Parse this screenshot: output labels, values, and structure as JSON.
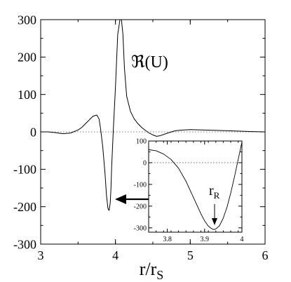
{
  "chart_data": [
    {
      "type": "line",
      "title": "",
      "xlabel": "r/r",
      "xlabel_sub": "S",
      "ylabel": "",
      "xlim": [
        3,
        6
      ],
      "ylim": [
        -300,
        300
      ],
      "x_ticks": [
        3,
        4,
        5,
        6
      ],
      "y_ticks": [
        -300,
        -200,
        -100,
        0,
        100,
        200,
        300
      ],
      "x_tick_labels": [
        "3",
        "4",
        "5",
        "6"
      ],
      "y_tick_labels": [
        "-300",
        "-200",
        "-100",
        "0",
        "100",
        "200",
        "300"
      ],
      "reference_line": {
        "y": 0,
        "style": "dotted"
      },
      "annotation": "ℜ(U)",
      "series": [
        {
          "x": [
            3.0,
            3.1,
            3.2,
            3.3,
            3.4,
            3.5,
            3.55,
            3.6,
            3.65,
            3.7,
            3.75,
            3.78,
            3.8,
            3.83,
            3.86,
            3.88,
            3.9,
            3.915,
            3.93,
            3.94,
            3.95,
            3.97,
            4.0,
            4.03,
            4.06,
            4.08,
            4.1,
            4.12,
            4.15,
            4.2,
            4.25,
            4.3,
            4.35,
            4.4,
            4.45,
            4.5,
            4.55,
            4.6,
            4.7,
            4.8,
            4.9,
            5.0,
            5.2,
            5.5,
            5.8,
            6.0
          ],
          "y": [
            0,
            0,
            -2,
            -5,
            -3,
            5,
            12,
            22,
            32,
            42,
            45,
            35,
            10,
            -40,
            -110,
            -170,
            -205,
            -210,
            -190,
            -150,
            -90,
            0,
            120,
            260,
            300,
            300,
            260,
            170,
            95,
            55,
            35,
            22,
            12,
            4,
            -3,
            -8,
            -12,
            -10,
            -3,
            3,
            5,
            6,
            5,
            3,
            1,
            0
          ]
        }
      ]
    },
    {
      "type": "line",
      "title": "",
      "xlabel": "",
      "ylabel": "",
      "xlim": [
        3.75,
        4.0
      ],
      "ylim": [
        -320,
        100
      ],
      "x_ticks": [
        3.8,
        3.9,
        4.0
      ],
      "y_ticks": [
        -300,
        -200,
        -100,
        0,
        100
      ],
      "x_tick_labels": [
        "3.8",
        "3.9",
        "4"
      ],
      "y_tick_labels": [
        "-300",
        "-200",
        "-100",
        "0",
        "100"
      ],
      "reference_line": {
        "y": 0,
        "style": "dotted"
      },
      "annotation": "r",
      "annotation_sub": "R",
      "series": [
        {
          "x": [
            3.75,
            3.77,
            3.79,
            3.81,
            3.83,
            3.85,
            3.87,
            3.89,
            3.9,
            3.91,
            3.92,
            3.925,
            3.93,
            3.94,
            3.95,
            3.96,
            3.97,
            3.98,
            3.99,
            4.0
          ],
          "y": [
            60,
            55,
            40,
            15,
            -25,
            -85,
            -160,
            -235,
            -268,
            -292,
            -305,
            -308,
            -305,
            -290,
            -255,
            -205,
            -140,
            -65,
            15,
            95
          ]
        }
      ]
    }
  ]
}
